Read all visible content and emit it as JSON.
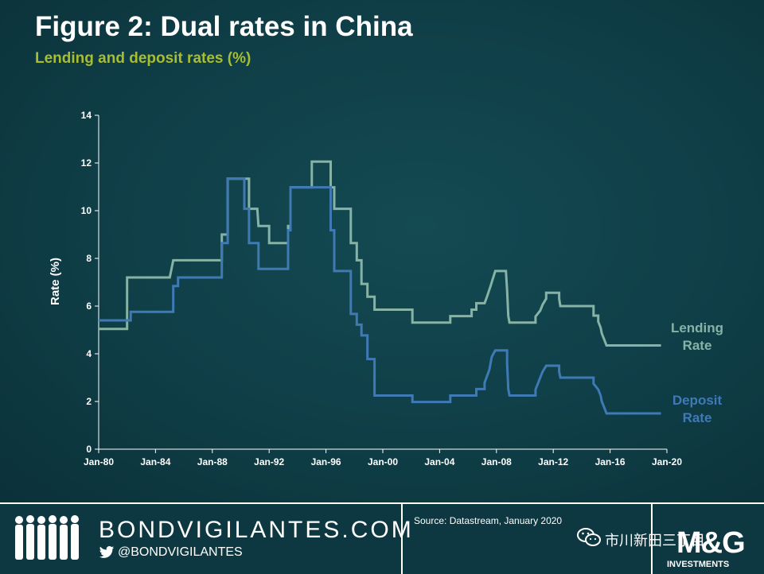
{
  "header": {
    "title": "Figure 2: Dual rates in China",
    "subtitle": "Lending and deposit rates (%)"
  },
  "chart_data": {
    "type": "line",
    "title": "Figure 2: Dual rates in China",
    "subtitle": "Lending and deposit rates (%)",
    "xlabel": "",
    "ylabel": "Rate (%)",
    "xlim": [
      "1980-01",
      "2020-01"
    ],
    "ylim": [
      0,
      14
    ],
    "x_ticks": [
      "Jan-80",
      "Jan-84",
      "Jan-88",
      "Jan-92",
      "Jan-96",
      "Jan-00",
      "Jan-04",
      "Jan-08",
      "Jan-12",
      "Jan-16",
      "Jan-20"
    ],
    "y_ticks": [
      0,
      2,
      4,
      6,
      8,
      10,
      12,
      14
    ],
    "grid": false,
    "legend": "inline labels at right end of series",
    "series": [
      {
        "name": "Lending Rate",
        "label_lines": [
          "Lending",
          "Rate"
        ],
        "color": "#86b3a6",
        "points": [
          [
            "1980-01",
            5.04
          ],
          [
            "1982-01",
            5.04
          ],
          [
            "1982-01",
            7.2
          ],
          [
            "1985-01",
            7.2
          ],
          [
            "1985-04",
            7.92
          ],
          [
            "1988-09",
            7.92
          ],
          [
            "1988-09",
            9.0
          ],
          [
            "1989-02",
            9.0
          ],
          [
            "1989-02",
            11.34
          ],
          [
            "1990-08",
            11.34
          ],
          [
            "1990-08",
            10.08
          ],
          [
            "1991-03",
            10.08
          ],
          [
            "1991-04",
            9.36
          ],
          [
            "1992-01",
            9.36
          ],
          [
            "1992-01",
            8.64
          ],
          [
            "1993-05",
            8.64
          ],
          [
            "1993-05",
            9.36
          ],
          [
            "1993-07",
            9.36
          ],
          [
            "1993-07",
            10.98
          ],
          [
            "1995-01",
            10.98
          ],
          [
            "1995-01",
            12.06
          ],
          [
            "1996-05",
            12.06
          ],
          [
            "1996-05",
            10.98
          ],
          [
            "1996-08",
            10.98
          ],
          [
            "1996-08",
            10.08
          ],
          [
            "1997-10",
            10.08
          ],
          [
            "1997-10",
            8.64
          ],
          [
            "1998-03",
            8.64
          ],
          [
            "1998-03",
            7.92
          ],
          [
            "1998-07",
            7.92
          ],
          [
            "1998-07",
            6.93
          ],
          [
            "1998-12",
            6.93
          ],
          [
            "1998-12",
            6.39
          ],
          [
            "1999-06",
            6.39
          ],
          [
            "1999-06",
            5.85
          ],
          [
            "2002-02",
            5.85
          ],
          [
            "2002-02",
            5.31
          ],
          [
            "2004-10",
            5.31
          ],
          [
            "2004-10",
            5.58
          ],
          [
            "2006-04",
            5.58
          ],
          [
            "2006-04",
            5.85
          ],
          [
            "2006-08",
            5.85
          ],
          [
            "2006-08",
            6.12
          ],
          [
            "2007-03",
            6.12
          ],
          [
            "2007-05",
            6.39
          ],
          [
            "2007-08",
            6.84
          ],
          [
            "2007-12",
            7.47
          ],
          [
            "2008-09",
            7.47
          ],
          [
            "2008-10",
            6.66
          ],
          [
            "2008-11",
            5.58
          ],
          [
            "2008-12",
            5.31
          ],
          [
            "2010-10",
            5.31
          ],
          [
            "2010-10",
            5.56
          ],
          [
            "2011-02",
            5.81
          ],
          [
            "2011-04",
            6.06
          ],
          [
            "2011-07",
            6.31
          ],
          [
            "2011-07",
            6.56
          ],
          [
            "2012-06",
            6.56
          ],
          [
            "2012-06",
            6.31
          ],
          [
            "2012-07",
            6.0
          ],
          [
            "2014-11",
            6.0
          ],
          [
            "2014-11",
            5.6
          ],
          [
            "2015-03",
            5.6
          ],
          [
            "2015-03",
            5.35
          ],
          [
            "2015-05",
            5.1
          ],
          [
            "2015-06",
            4.85
          ],
          [
            "2015-08",
            4.6
          ],
          [
            "2015-10",
            4.35
          ],
          [
            "2019-08",
            4.35
          ]
        ]
      },
      {
        "name": "Deposit Rate",
        "label_lines": [
          "Deposit",
          "Rate"
        ],
        "color": "#3f7ab5",
        "points": [
          [
            "1980-01",
            5.4
          ],
          [
            "1982-04",
            5.4
          ],
          [
            "1982-04",
            5.76
          ],
          [
            "1985-04",
            5.76
          ],
          [
            "1985-04",
            6.84
          ],
          [
            "1985-08",
            6.84
          ],
          [
            "1985-08",
            7.2
          ],
          [
            "1988-09",
            7.2
          ],
          [
            "1988-09",
            8.64
          ],
          [
            "1989-02",
            8.64
          ],
          [
            "1989-02",
            11.34
          ],
          [
            "1990-04",
            11.34
          ],
          [
            "1990-04",
            10.08
          ],
          [
            "1990-08",
            10.08
          ],
          [
            "1990-08",
            8.64
          ],
          [
            "1991-04",
            8.64
          ],
          [
            "1991-04",
            7.56
          ],
          [
            "1993-05",
            7.56
          ],
          [
            "1993-05",
            9.18
          ],
          [
            "1993-07",
            9.18
          ],
          [
            "1993-07",
            10.98
          ],
          [
            "1996-05",
            10.98
          ],
          [
            "1996-05",
            9.18
          ],
          [
            "1996-08",
            9.18
          ],
          [
            "1996-08",
            7.47
          ],
          [
            "1997-10",
            7.47
          ],
          [
            "1997-10",
            5.67
          ],
          [
            "1998-03",
            5.67
          ],
          [
            "1998-03",
            5.22
          ],
          [
            "1998-07",
            5.22
          ],
          [
            "1998-07",
            4.77
          ],
          [
            "1998-12",
            4.77
          ],
          [
            "1998-12",
            3.78
          ],
          [
            "1999-06",
            3.78
          ],
          [
            "1999-06",
            2.25
          ],
          [
            "2002-02",
            2.25
          ],
          [
            "2002-02",
            1.98
          ],
          [
            "2004-10",
            1.98
          ],
          [
            "2004-10",
            2.25
          ],
          [
            "2006-08",
            2.25
          ],
          [
            "2006-08",
            2.52
          ],
          [
            "2007-03",
            2.52
          ],
          [
            "2007-03",
            2.79
          ],
          [
            "2007-05",
            3.06
          ],
          [
            "2007-07",
            3.33
          ],
          [
            "2007-08",
            3.6
          ],
          [
            "2007-09",
            3.87
          ],
          [
            "2007-12",
            4.14
          ],
          [
            "2008-10",
            4.14
          ],
          [
            "2008-10",
            3.87
          ],
          [
            "2008-10",
            3.6
          ],
          [
            "2008-11",
            2.52
          ],
          [
            "2008-12",
            2.25
          ],
          [
            "2010-10",
            2.25
          ],
          [
            "2010-10",
            2.5
          ],
          [
            "2010-12",
            2.75
          ],
          [
            "2011-02",
            3.0
          ],
          [
            "2011-04",
            3.25
          ],
          [
            "2011-07",
            3.5
          ],
          [
            "2012-06",
            3.5
          ],
          [
            "2012-06",
            3.25
          ],
          [
            "2012-07",
            3.0
          ],
          [
            "2014-11",
            3.0
          ],
          [
            "2014-11",
            2.75
          ],
          [
            "2015-03",
            2.5
          ],
          [
            "2015-05",
            2.25
          ],
          [
            "2015-06",
            2.0
          ],
          [
            "2015-08",
            1.75
          ],
          [
            "2015-10",
            1.5
          ],
          [
            "2019-08",
            1.5
          ]
        ]
      }
    ]
  },
  "footer": {
    "brand_name": "BONDVIGILANTES.COM",
    "brand_handle": "@BONDVIGILANTES",
    "source": "Source: Datastream, January 2020",
    "wechat_label": "市川新田三丁目",
    "logo_main": "M&G",
    "logo_sub": "INVESTMENTS",
    "icons": [
      "people-silhouette-icon",
      "twitter-bird-icon",
      "wechat-icon"
    ]
  }
}
